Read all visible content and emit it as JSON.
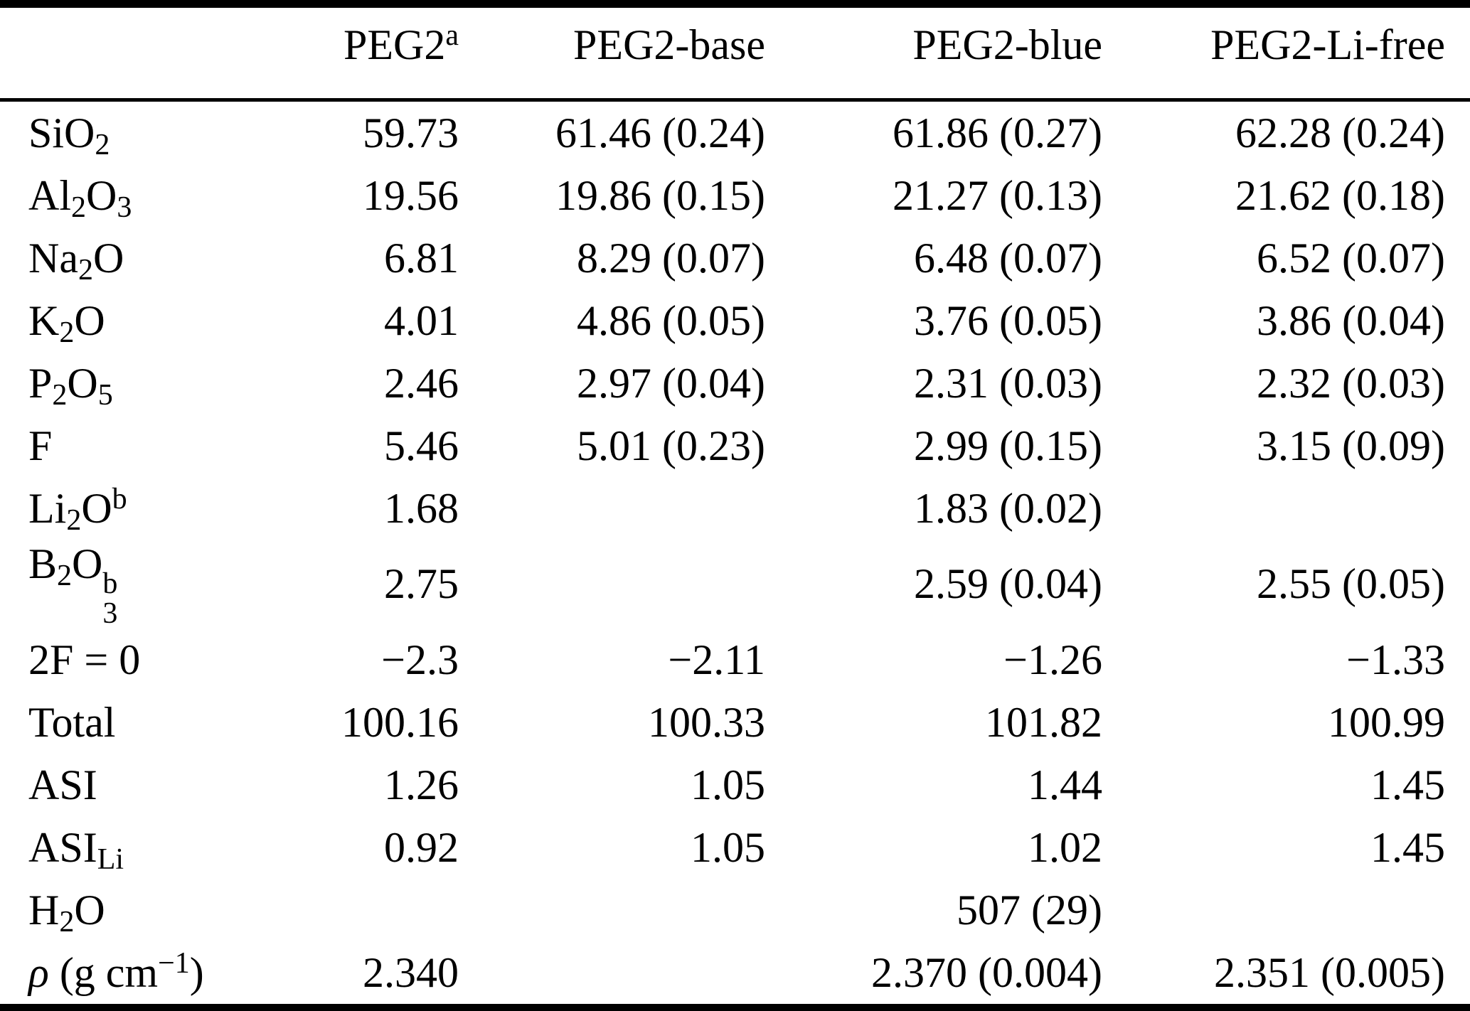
{
  "colors": {
    "background": "#ffffff",
    "text": "#000000",
    "rule": "#000000"
  },
  "table": {
    "description": "Composition table of PEG2 glass samples",
    "columns": [
      {
        "name": "analyte",
        "segments": [
          {
            "t": ""
          }
        ]
      },
      {
        "name": "PEG2",
        "segments": [
          {
            "t": "PEG2"
          },
          {
            "sup": "a"
          }
        ]
      },
      {
        "name": "PEG2-base",
        "segments": [
          {
            "t": "PEG2-base"
          }
        ]
      },
      {
        "name": "PEG2-blue",
        "segments": [
          {
            "t": "PEG2-blue"
          }
        ]
      },
      {
        "name": "PEG2-Li-free",
        "segments": [
          {
            "t": "PEG2-Li-free"
          }
        ]
      }
    ],
    "rows": [
      {
        "label": {
          "plain": "SiO2",
          "segments": [
            {
              "t": "SiO"
            },
            {
              "sub": "2"
            }
          ]
        },
        "values": [
          "59.73",
          "61.46 (0.24)",
          "61.86 (0.27)",
          "62.28 (0.24)"
        ]
      },
      {
        "label": {
          "plain": "Al2O3",
          "segments": [
            {
              "t": "Al"
            },
            {
              "sub": "2"
            },
            {
              "t": "O"
            },
            {
              "sub": "3"
            }
          ]
        },
        "values": [
          "19.56",
          "19.86 (0.15)",
          "21.27 (0.13)",
          "21.62 (0.18)"
        ]
      },
      {
        "label": {
          "plain": "Na2O",
          "segments": [
            {
              "t": "Na"
            },
            {
              "sub": "2"
            },
            {
              "t": "O"
            }
          ]
        },
        "values": [
          "6.81",
          "8.29 (0.07)",
          "6.48 (0.07)",
          "6.52 (0.07)"
        ]
      },
      {
        "label": {
          "plain": "K2O",
          "segments": [
            {
              "t": "K"
            },
            {
              "sub": "2"
            },
            {
              "t": "O"
            }
          ]
        },
        "values": [
          "4.01",
          "4.86 (0.05)",
          "3.76 (0.05)",
          "3.86 (0.04)"
        ]
      },
      {
        "label": {
          "plain": "P2O5",
          "segments": [
            {
              "t": "P"
            },
            {
              "sub": "2"
            },
            {
              "t": "O"
            },
            {
              "sub": "5"
            }
          ]
        },
        "values": [
          "2.46",
          "2.97 (0.04)",
          "2.31 (0.03)",
          "2.32 (0.03)"
        ]
      },
      {
        "label": {
          "plain": "F",
          "segments": [
            {
              "t": "F"
            }
          ]
        },
        "values": [
          "5.46",
          "5.01 (0.23)",
          "2.99 (0.15)",
          "3.15 (0.09)"
        ]
      },
      {
        "label": {
          "plain": "Li2O^b",
          "segments": [
            {
              "t": "Li"
            },
            {
              "sub": "2"
            },
            {
              "t": "O"
            },
            {
              "sup": "b"
            }
          ]
        },
        "values": [
          "1.68",
          "",
          "1.83 (0.02)",
          ""
        ]
      },
      {
        "label": {
          "plain": "B2O3^b",
          "segments": [
            {
              "t": "B"
            },
            {
              "sub": "2"
            },
            {
              "t": "O"
            },
            {
              "supsub": [
                "b",
                "3"
              ]
            }
          ]
        },
        "values": [
          "2.75",
          "",
          "2.59 (0.04)",
          "2.55 (0.05)"
        ]
      },
      {
        "label": {
          "plain": "2F = 0",
          "segments": [
            {
              "t": "2F = 0"
            }
          ]
        },
        "values": [
          "−2.3",
          "−2.11",
          "−1.26",
          "−1.33"
        ]
      },
      {
        "label": {
          "plain": "Total",
          "segments": [
            {
              "t": "Total"
            }
          ]
        },
        "values": [
          "100.16",
          "100.33",
          "101.82",
          "100.99"
        ]
      },
      {
        "label": {
          "plain": "ASI",
          "segments": [
            {
              "t": "ASI"
            }
          ]
        },
        "values": [
          "1.26",
          "1.05",
          "1.44",
          "1.45"
        ]
      },
      {
        "label": {
          "plain": "ASI_Li",
          "segments": [
            {
              "t": "ASI"
            },
            {
              "sub": "Li"
            }
          ]
        },
        "values": [
          "0.92",
          "1.05",
          "1.02",
          "1.45"
        ]
      },
      {
        "label": {
          "plain": "H2O",
          "segments": [
            {
              "t": "H"
            },
            {
              "sub": "2"
            },
            {
              "t": "O"
            }
          ]
        },
        "values": [
          "",
          "",
          "507 (29)",
          ""
        ]
      },
      {
        "label": {
          "plain": "rho (g cm^-1)",
          "segments": [
            {
              "i": "ρ"
            },
            {
              "t": " (g cm"
            },
            {
              "sup": "−1"
            },
            {
              "t": ")"
            }
          ]
        },
        "values": [
          "2.340",
          "",
          "2.370 (0.004)",
          "2.351 (0.005)"
        ]
      }
    ]
  }
}
